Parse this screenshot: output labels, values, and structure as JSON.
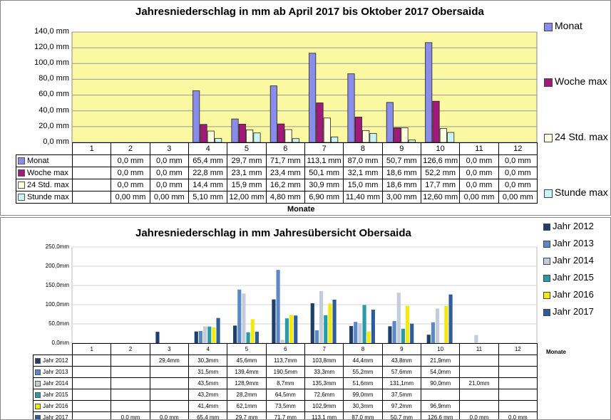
{
  "chart_data": [
    {
      "type": "bar",
      "title": "Jahresniederschlag in mm ab April 2017 bis Oktober 2017 Obersaida",
      "xlabel": "Monate",
      "ylabel": "",
      "ylim": [
        0,
        140
      ],
      "y_tick_labels": [
        "0,0 mm",
        "20,0 mm",
        "40,0 mm",
        "60,0 mm",
        "80,0 mm",
        "100,0 mm",
        "120,0 mm",
        "140,0 mm"
      ],
      "y_ticks": [
        0,
        20,
        40,
        60,
        80,
        100,
        120,
        140
      ],
      "plot_background": "#FAF8A0",
      "grid": true,
      "legend_position": "right",
      "categories": [
        "1",
        "2",
        "3",
        "4",
        "5",
        "6",
        "7",
        "8",
        "9",
        "10",
        "11",
        "12"
      ],
      "series": [
        {
          "name": "Monat",
          "color": "#8A8CEA",
          "values": [
            null,
            0,
            0,
            65.4,
            29.7,
            71.7,
            113.1,
            87.0,
            50.7,
            126.6,
            0,
            0
          ],
          "labels": [
            "",
            "0,0 mm",
            "0,0 mm",
            "65,4 mm",
            "29,7 mm",
            "71,7 mm",
            "113,1 mm",
            "87,0 mm",
            "50,7 mm",
            "126,6 mm",
            "0,0 mm",
            "0,0 mm"
          ]
        },
        {
          "name": "Woche max",
          "color": "#A11A7A",
          "values": [
            null,
            0,
            0,
            22.8,
            23.1,
            23.4,
            50.1,
            32.1,
            18.6,
            52.2,
            0,
            0
          ],
          "labels": [
            "",
            "0,0 mm",
            "0,0 mm",
            "22,8 mm",
            "23,1 mm",
            "23,4 mm",
            "50,1 mm",
            "32,1 mm",
            "18,6 mm",
            "52,2 mm",
            "0,0 mm",
            "0,0 mm"
          ]
        },
        {
          "name": "24 Std. max",
          "color": "#FFFFE0",
          "values": [
            null,
            0,
            0,
            14.4,
            15.9,
            16.2,
            30.9,
            15.0,
            18.6,
            17.7,
            0,
            0
          ],
          "labels": [
            "",
            "0,0 mm",
            "0,0 mm",
            "14,4 mm",
            "15,9 mm",
            "16,2 mm",
            "30,9 mm",
            "15,0 mm",
            "18,6 mm",
            "17,7 mm",
            "0,0 mm",
            "0,0 mm"
          ]
        },
        {
          "name": "Stunde max",
          "color": "#C9F5F3",
          "values": [
            null,
            0,
            0,
            5.1,
            12.0,
            4.8,
            6.9,
            11.4,
            3.0,
            12.6,
            0,
            0
          ],
          "labels": [
            "",
            "0,00 mm",
            "0,00 mm",
            "5,10 mm",
            "12,00 mm",
            "4,80 mm",
            "6,90 mm",
            "11,40 mm",
            "3,00 mm",
            "12,60 mm",
            "0,00 mm",
            "0,00 mm"
          ]
        }
      ]
    },
    {
      "type": "bar",
      "title": "Jahresniederschlag in mm  Jahresübersicht Obersaida",
      "xlabel": "Monate",
      "ylabel": "",
      "ylim": [
        0,
        250
      ],
      "y_tick_labels": [
        "0,0mm",
        "50,0mm",
        "100,0mm",
        "150,0mm",
        "200,0mm",
        "250,0mm"
      ],
      "y_ticks": [
        0,
        50,
        100,
        150,
        200,
        250
      ],
      "grid": true,
      "legend_position": "right",
      "categories": [
        "1",
        "2",
        "3",
        "4",
        "5",
        "6",
        "7",
        "8",
        "9",
        "10",
        "11",
        "12"
      ],
      "series": [
        {
          "name": "Jahr 2012",
          "color": "#1F3F6B",
          "values": [
            null,
            null,
            29.4,
            30.3,
            45.6,
            113.7,
            103.8,
            44.4,
            43.8,
            21.9,
            null,
            null
          ],
          "labels": [
            "",
            "",
            "29,4mm",
            "30,3mm",
            "45,6mm",
            "113,7mm",
            "103,8mm",
            "44,4mm",
            "43,8mm",
            "21,9mm",
            "",
            ""
          ]
        },
        {
          "name": "Jahr 2013",
          "color": "#5B88C6",
          "values": [
            null,
            null,
            null,
            31.5,
            139.4,
            190.5,
            33.3,
            55.2,
            57.6,
            54.0,
            null,
            null
          ],
          "labels": [
            "",
            "",
            "",
            "31,5mm",
            "139,4mm",
            "190,5mm",
            "33,3mm",
            "55,2mm",
            "57,6mm",
            "54,0mm",
            "",
            ""
          ]
        },
        {
          "name": "Jahr 2014",
          "color": "#C3CCDA",
          "values": [
            null,
            null,
            null,
            43.5,
            128.9,
            8.7,
            135.3,
            51.6,
            131.1,
            90.0,
            21.0,
            null
          ],
          "labels": [
            "",
            "",
            "",
            "43,5mm",
            "128,9mm",
            "8,7mm",
            "135,3mm",
            "51,6mm",
            "131,1mm",
            "90,0mm",
            "21,0mm",
            ""
          ]
        },
        {
          "name": "Jahr 2015",
          "color": "#2A9BA6",
          "values": [
            null,
            null,
            null,
            43.2,
            28.2,
            64.5,
            72.6,
            99.0,
            37.5,
            null,
            null,
            null
          ],
          "labels": [
            "",
            "",
            "",
            "43,2mm",
            "28,2mm",
            "64,5mm",
            "72,6mm",
            "99,0mm",
            "37,5mm",
            "",
            "",
            ""
          ]
        },
        {
          "name": "Jahr 2016",
          "color": "#F2EA0C",
          "values": [
            null,
            null,
            null,
            41.4,
            62.1,
            73.5,
            102.9,
            30.3,
            97.2,
            96.9,
            null,
            null
          ],
          "labels": [
            "",
            "",
            "",
            "41,4mm",
            "62,1mm",
            "73,5mm",
            "102,9mm",
            "30,3mm",
            "97,2mm",
            "96,9mm",
            "",
            ""
          ]
        },
        {
          "name": "Jahr 2017",
          "color": "#2E5C9C",
          "values": [
            null,
            0,
            0,
            65.4,
            29.7,
            71.7,
            113.1,
            87.0,
            50.7,
            126.6,
            0,
            0
          ],
          "labels": [
            "",
            "0,0 mm",
            "0,0 mm",
            "65,4 mm",
            "29,7 mm",
            "71,7 mm",
            "113,1 mm",
            "87,0 mm",
            "50,7 mm",
            "126,6 mm",
            "0,0 mm",
            "0,0 mm"
          ]
        }
      ]
    }
  ]
}
